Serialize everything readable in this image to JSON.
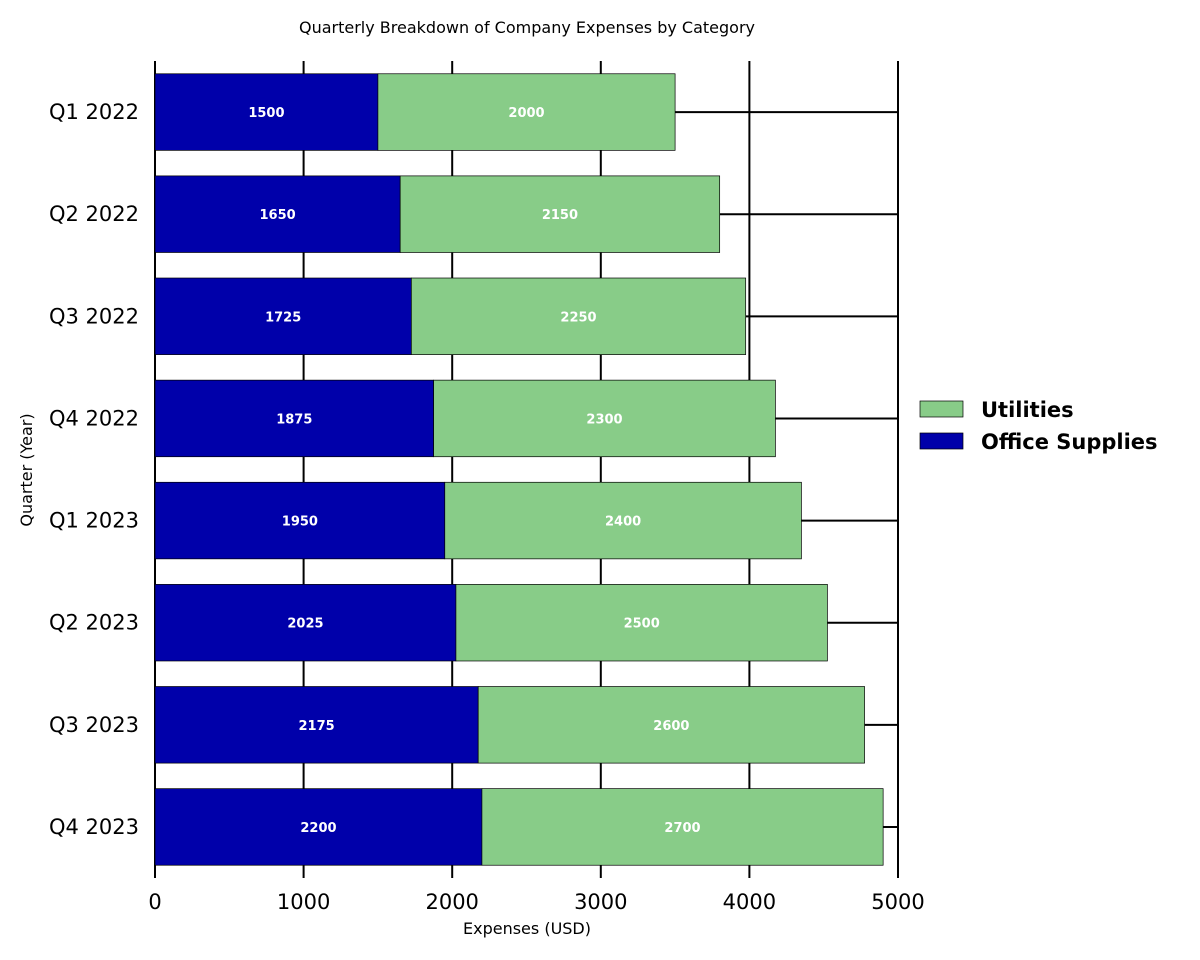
{
  "chart_data": {
    "type": "bar",
    "orientation": "horizontal",
    "stacked": true,
    "title": "Quarterly Breakdown of Company Expenses by Category",
    "xlabel": "Expenses (USD)",
    "ylabel": "Quarter (Year)",
    "categories": [
      "Q1 2022",
      "Q2 2022",
      "Q3 2022",
      "Q4 2022",
      "Q1 2023",
      "Q2 2023",
      "Q3 2023",
      "Q4 2023"
    ],
    "series": [
      {
        "name": "Office Supplies",
        "color": "#0000aa",
        "values": [
          1500,
          1650,
          1725,
          1875,
          1950,
          2025,
          2175,
          2200
        ]
      },
      {
        "name": "Utilities",
        "color": "#88cc88",
        "values": [
          2000,
          2150,
          2250,
          2300,
          2400,
          2500,
          2600,
          2700
        ]
      }
    ],
    "xlim": [
      0,
      5000
    ],
    "xticks": [
      0,
      1000,
      2000,
      3000,
      4000,
      5000
    ],
    "grid": true,
    "legend": {
      "placement": "right",
      "order": [
        "Utilities",
        "Office Supplies"
      ]
    }
  }
}
